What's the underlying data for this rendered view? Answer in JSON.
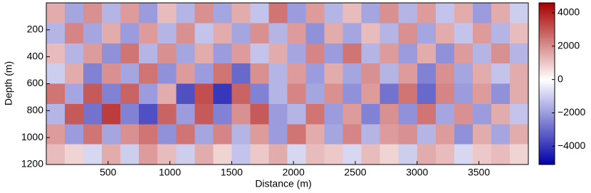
{
  "chart_data": {
    "type": "heatmap",
    "xlabel": "Distance (m)",
    "ylabel": "Depth (m)",
    "x": [
      75,
      225,
      375,
      525,
      675,
      825,
      975,
      1125,
      1275,
      1425,
      1575,
      1725,
      1875,
      2025,
      2175,
      2325,
      2475,
      2625,
      2775,
      2925,
      3075,
      3225,
      3375,
      3525,
      3675,
      3825
    ],
    "y": [
      75,
      225,
      375,
      525,
      675,
      825,
      975,
      1125
    ],
    "z": [
      [
        1500,
        -1800,
        2000,
        -1500,
        1800,
        -2000,
        1200,
        -1500,
        2000,
        -1800,
        1500,
        -1200,
        2500,
        -2000,
        1800,
        -1500,
        1200,
        -1800,
        2000,
        -1500,
        1800,
        -1200,
        1500,
        -2000,
        1500,
        -1000
      ],
      [
        -1500,
        2200,
        -1800,
        1500,
        -2000,
        1800,
        -1500,
        2000,
        -1200,
        1500,
        -1800,
        2000,
        -1500,
        1800,
        -2200,
        1500,
        -1800,
        1200,
        -1500,
        2000,
        -1800,
        1500,
        -1200,
        1800,
        -1500,
        1200
      ],
      [
        1200,
        -1500,
        1800,
        -2200,
        2500,
        -1500,
        2000,
        -1800,
        1500,
        -2000,
        1800,
        -1200,
        1500,
        -1800,
        2200,
        -2000,
        2500,
        -1500,
        1800,
        -2000,
        1500,
        -2200,
        1800,
        -1500,
        2000,
        -1500
      ],
      [
        -1000,
        1500,
        -2500,
        2000,
        -1800,
        2500,
        -2200,
        1800,
        -2000,
        2500,
        -3000,
        2000,
        -1500,
        1800,
        -2000,
        1500,
        -1800,
        2000,
        -1500,
        1800,
        -2500,
        2000,
        -1800,
        1500,
        -1200,
        1500
      ],
      [
        2500,
        -1800,
        3000,
        -2500,
        2800,
        -2000,
        1500,
        -3500,
        3200,
        -4000,
        2800,
        -2500,
        -1500,
        2200,
        -1800,
        2000,
        -2200,
        1800,
        -2800,
        2500,
        -3000,
        2200,
        -2000,
        1800,
        -2200,
        1500
      ],
      [
        -1500,
        3000,
        -2800,
        3500,
        -2500,
        -3500,
        2800,
        -2000,
        3000,
        -2500,
        2000,
        3000,
        -2000,
        -1500,
        2500,
        -2000,
        1800,
        -2500,
        2000,
        -2200,
        2500,
        -1800,
        2000,
        -2000,
        1500,
        -1200
      ],
      [
        1800,
        -2000,
        2500,
        -1800,
        2000,
        2500,
        -2200,
        2500,
        -1800,
        2200,
        -1500,
        1800,
        -2000,
        2500,
        1500,
        -1800,
        2200,
        -1500,
        1800,
        2000,
        -1500,
        1800,
        -2200,
        1500,
        -1800,
        1500
      ],
      [
        1200,
        800,
        -800,
        1500,
        -1000,
        1800,
        1200,
        -1000,
        1500,
        800,
        -1200,
        1000,
        1500,
        -800,
        1200,
        1000,
        -800,
        1200,
        800,
        -1000,
        1500,
        1200,
        -800,
        1000,
        1200,
        800
      ]
    ],
    "xlim": [
      0,
      3900
    ],
    "ylim": [
      1200,
      0
    ],
    "xticks": [
      500,
      1000,
      1500,
      2000,
      2500,
      3000,
      3500
    ],
    "yticks": [
      200,
      400,
      600,
      800,
      1000,
      1200
    ],
    "zlim": [
      -5100,
      4600
    ],
    "zticks": [
      {
        "value": -4000,
        "label": "−4000"
      },
      {
        "value": -2000,
        "label": "−2000"
      },
      0,
      2000,
      4000
    ],
    "colormap": [
      "#0000a8",
      "#ffffff",
      "#a80000"
    ]
  }
}
